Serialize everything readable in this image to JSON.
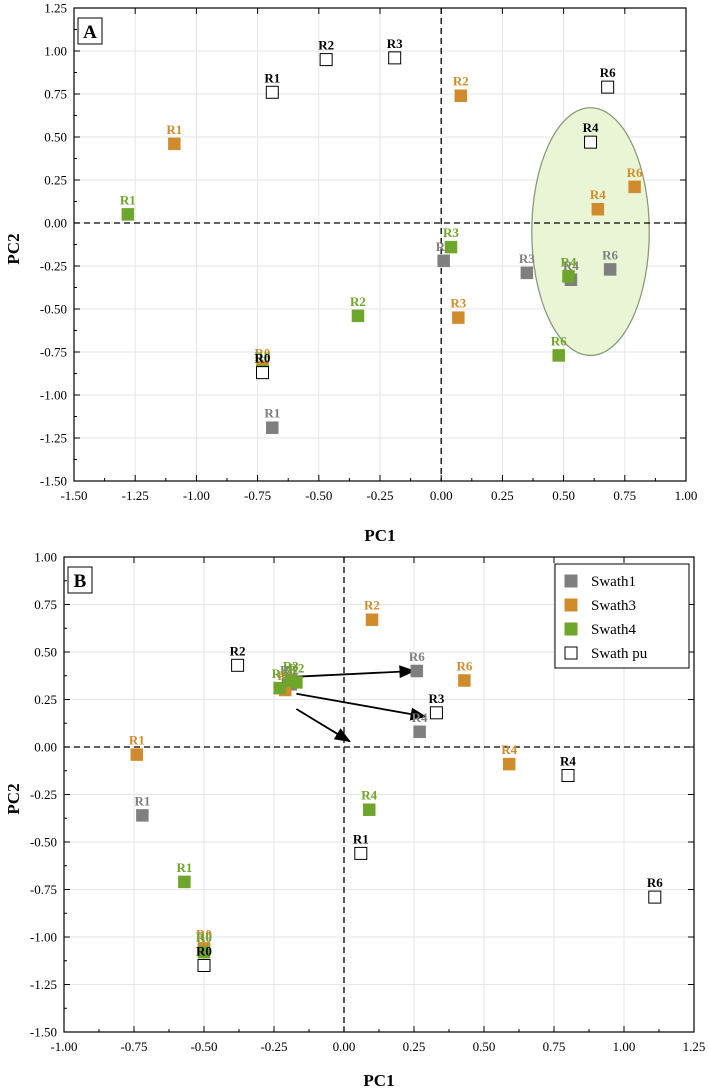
{
  "colors": {
    "swath1": "#7f7f7f",
    "swath3": "#d08c2c",
    "swath4": "#6ea52b",
    "open": "#ffffff",
    "open_label": "#000000",
    "ellipse_fill": "#eaf5d6",
    "ellipse_stroke": "#8a9a7a"
  },
  "chart_data": [
    {
      "type": "scatter",
      "panel_label": "A",
      "xlabel": "PC1",
      "ylabel": "PC2",
      "xlim": [
        -1.5,
        1.0
      ],
      "ylim": [
        -1.5,
        1.25
      ],
      "xticks": [
        "-1.50",
        "-1.25",
        "-1.00",
        "-0.75",
        "-0.50",
        "-0.25",
        "0.00",
        "0.25",
        "0.50",
        "0.75",
        "1.00"
      ],
      "yticks": [
        "-1.50",
        "-1.25",
        "-1.00",
        "-0.75",
        "-0.50",
        "-0.25",
        "0.00",
        "0.25",
        "0.50",
        "0.75",
        "1.00",
        "1.25"
      ],
      "reference_lines": {
        "x": 0,
        "y": 0
      },
      "ellipse": {
        "cx": 0.61,
        "cy": -0.05,
        "rx": 0.24,
        "ry": 0.72
      },
      "series": [
        {
          "key": "swath1",
          "points": [
            {
              "x": 0.01,
              "y": -0.22,
              "label": "R2"
            },
            {
              "x": 0.35,
              "y": -0.29,
              "label": "R3"
            },
            {
              "x": 0.53,
              "y": -0.33,
              "label": "R4"
            },
            {
              "x": 0.69,
              "y": -0.27,
              "label": "R6"
            },
            {
              "x": -0.69,
              "y": -1.19,
              "label": "R1"
            }
          ]
        },
        {
          "key": "swath3",
          "points": [
            {
              "x": -1.09,
              "y": 0.46,
              "label": "R1"
            },
            {
              "x": 0.08,
              "y": 0.74,
              "label": "R2"
            },
            {
              "x": 0.07,
              "y": -0.55,
              "label": "R3"
            },
            {
              "x": 0.64,
              "y": 0.08,
              "label": "R4"
            },
            {
              "x": 0.79,
              "y": 0.21,
              "label": "R6"
            },
            {
              "x": -0.73,
              "y": -0.84,
              "label": "R0"
            }
          ]
        },
        {
          "key": "swath4",
          "points": [
            {
              "x": -1.28,
              "y": 0.05,
              "label": "R1"
            },
            {
              "x": -0.34,
              "y": -0.54,
              "label": "R2"
            },
            {
              "x": 0.04,
              "y": -0.14,
              "label": "R3"
            },
            {
              "x": 0.52,
              "y": -0.31,
              "label": "R4"
            },
            {
              "x": 0.48,
              "y": -0.77,
              "label": "R6"
            },
            {
              "x": -0.73,
              "y": -0.86,
              "label": "R0"
            }
          ]
        },
        {
          "key": "open",
          "points": [
            {
              "x": -0.69,
              "y": 0.76,
              "label": "R1"
            },
            {
              "x": -0.47,
              "y": 0.95,
              "label": "R2"
            },
            {
              "x": -0.19,
              "y": 0.96,
              "label": "R3"
            },
            {
              "x": 0.61,
              "y": 0.47,
              "label": "R4"
            },
            {
              "x": 0.68,
              "y": 0.79,
              "label": "R6"
            },
            {
              "x": -0.73,
              "y": -0.87,
              "label": "R0"
            }
          ]
        }
      ]
    },
    {
      "type": "scatter",
      "panel_label": "B",
      "xlabel": "PC1",
      "ylabel": "PC2",
      "xlim": [
        -1.0,
        1.25
      ],
      "ylim": [
        -1.5,
        1.0
      ],
      "xticks": [
        "-1.00",
        "-0.75",
        "-0.50",
        "-0.25",
        "0.00",
        "0.25",
        "0.50",
        "0.75",
        "1.00",
        "1.25"
      ],
      "yticks": [
        "-1.50",
        "-1.25",
        "-1.00",
        "-0.75",
        "-0.50",
        "-0.25",
        "0.00",
        "0.25",
        "0.50",
        "0.75",
        "1.00"
      ],
      "reference_lines": {
        "x": 0,
        "y": 0
      },
      "legend": {
        "position": "top-right",
        "entries": [
          {
            "key": "swath1",
            "name": "Swath1"
          },
          {
            "key": "swath3",
            "name": "Swath3"
          },
          {
            "key": "swath4",
            "name": "Swath4"
          },
          {
            "key": "open",
            "name": "Swath pu"
          }
        ]
      },
      "arrows": [
        {
          "from": [
            -0.17,
            0.37
          ],
          "to": [
            0.25,
            0.4
          ]
        },
        {
          "from": [
            -0.17,
            0.28
          ],
          "to": [
            0.29,
            0.16
          ]
        },
        {
          "from": [
            -0.17,
            0.2
          ],
          "to": [
            0.02,
            0.03
          ]
        }
      ],
      "series": [
        {
          "key": "swath1",
          "points": [
            {
              "x": -0.72,
              "y": -0.36,
              "label": "R1"
            },
            {
              "x": -0.19,
              "y": 0.33,
              "label": "R2"
            },
            {
              "x": -0.2,
              "y": 0.33,
              "label": "R3"
            },
            {
              "x": 0.27,
              "y": 0.08,
              "label": "R4"
            },
            {
              "x": 0.26,
              "y": 0.4,
              "label": "R6"
            },
            {
              "x": -0.5,
              "y": -1.07,
              "label": "R0"
            }
          ]
        },
        {
          "key": "swath3",
          "points": [
            {
              "x": -0.74,
              "y": -0.04,
              "label": "R1"
            },
            {
              "x": 0.1,
              "y": 0.67,
              "label": "R2"
            },
            {
              "x": -0.21,
              "y": 0.3,
              "label": "R3"
            },
            {
              "x": 0.59,
              "y": -0.09,
              "label": "R4"
            },
            {
              "x": 0.43,
              "y": 0.35,
              "label": "R6"
            },
            {
              "x": -0.5,
              "y": -1.06,
              "label": "R0"
            }
          ]
        },
        {
          "key": "swath4",
          "points": [
            {
              "x": -0.57,
              "y": -0.71,
              "label": "R1"
            },
            {
              "x": -0.17,
              "y": 0.34,
              "label": "R2"
            },
            {
              "x": -0.19,
              "y": 0.35,
              "label": "R3"
            },
            {
              "x": 0.09,
              "y": -0.33,
              "label": "R4"
            },
            {
              "x": -0.23,
              "y": 0.31,
              "label": "R6"
            },
            {
              "x": -0.5,
              "y": -1.08,
              "label": "R0"
            }
          ]
        },
        {
          "key": "open",
          "points": [
            {
              "x": 0.06,
              "y": -0.56,
              "label": "R1"
            },
            {
              "x": -0.38,
              "y": 0.43,
              "label": "R2"
            },
            {
              "x": 0.33,
              "y": 0.18,
              "label": "R3"
            },
            {
              "x": 0.8,
              "y": -0.15,
              "label": "R4"
            },
            {
              "x": 1.11,
              "y": -0.79,
              "label": "R6"
            },
            {
              "x": -0.5,
              "y": -1.15,
              "label": "R0"
            }
          ]
        }
      ]
    }
  ]
}
